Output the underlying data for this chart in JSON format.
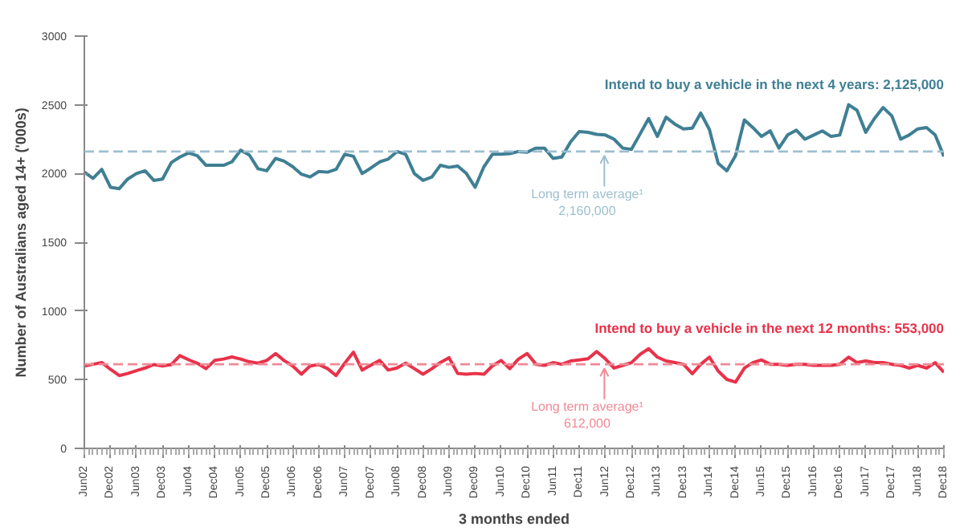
{
  "chart_data": {
    "type": "line",
    "xlabel": "3 months ended",
    "ylabel": "Number of Australians aged 14+ ('000s)",
    "x": [
      "2002-06",
      "2002-08",
      "2002-10",
      "2002-12",
      "2003-02",
      "2003-04",
      "2003-06",
      "2003-08",
      "2003-10",
      "2003-12",
      "2004-02",
      "2004-04",
      "2004-06",
      "2004-08",
      "2004-10",
      "2004-12",
      "2005-02",
      "2005-04",
      "2005-06",
      "2005-08",
      "2005-10",
      "2005-12",
      "2006-02",
      "2006-04",
      "2006-06",
      "2006-08",
      "2006-10",
      "2006-12",
      "2007-02",
      "2007-04",
      "2007-06",
      "2007-08",
      "2007-10",
      "2007-12",
      "2008-02",
      "2008-04",
      "2008-06",
      "2008-08",
      "2008-10",
      "2008-12",
      "2009-02",
      "2009-04",
      "2009-06",
      "2009-08",
      "2009-10",
      "2009-12",
      "2010-02",
      "2010-04",
      "2010-06",
      "2010-08",
      "2010-10",
      "2010-12",
      "2011-02",
      "2011-04",
      "2011-06",
      "2011-08",
      "2011-10",
      "2011-12",
      "2012-02",
      "2012-04",
      "2012-06",
      "2012-08",
      "2012-10",
      "2012-12",
      "2013-02",
      "2013-04",
      "2013-06",
      "2013-08",
      "2013-10",
      "2013-12",
      "2014-02",
      "2014-04",
      "2014-06",
      "2014-08",
      "2014-10",
      "2014-12",
      "2015-02",
      "2015-04",
      "2015-06",
      "2015-08",
      "2015-10",
      "2015-12",
      "2016-02",
      "2016-04",
      "2016-06",
      "2016-08",
      "2016-10",
      "2016-12",
      "2017-02",
      "2017-04",
      "2017-06",
      "2017-08",
      "2017-10",
      "2017-12",
      "2018-02",
      "2018-04",
      "2018-06",
      "2018-08",
      "2018-10",
      "2018-12"
    ],
    "series": [
      {
        "name": "Intend to buy a vehicle in the next 4 years: 2,125,000",
        "color": "#3f7f94",
        "values": [
          2010,
          1965,
          2030,
          1900,
          1890,
          1960,
          2000,
          2020,
          1950,
          1960,
          2080,
          2120,
          2150,
          2130,
          2060,
          2060,
          2060,
          2085,
          2170,
          2135,
          2035,
          2020,
          2110,
          2090,
          2050,
          1995,
          1975,
          2015,
          2010,
          2030,
          2140,
          2125,
          2000,
          2040,
          2085,
          2105,
          2160,
          2140,
          2000,
          1950,
          1975,
          2060,
          2045,
          2055,
          2000,
          1900,
          2050,
          2140,
          2140,
          2145,
          2160,
          2155,
          2185,
          2185,
          2110,
          2120,
          2230,
          2305,
          2300,
          2285,
          2280,
          2250,
          2185,
          2175,
          2290,
          2400,
          2270,
          2410,
          2360,
          2325,
          2330,
          2440,
          2320,
          2075,
          2020,
          2130,
          2390,
          2335,
          2270,
          2310,
          2185,
          2280,
          2315,
          2250,
          2280,
          2310,
          2270,
          2280,
          2500,
          2460,
          2300,
          2400,
          2480,
          2420,
          2250,
          2280,
          2325,
          2335,
          2280,
          2125
        ]
      },
      {
        "name": "Intend to buy a vehicle in the next 12 months: 553,000",
        "color": "#e8324a",
        "values": [
          600,
          612,
          625,
          575,
          530,
          545,
          565,
          585,
          610,
          600,
          610,
          675,
          645,
          620,
          580,
          640,
          650,
          665,
          650,
          630,
          620,
          640,
          690,
          640,
          600,
          540,
          600,
          610,
          580,
          530,
          620,
          700,
          570,
          605,
          640,
          570,
          585,
          620,
          580,
          540,
          580,
          625,
          660,
          545,
          540,
          545,
          540,
          600,
          640,
          580,
          650,
          690,
          612,
          604,
          624,
          612,
          636,
          644,
          652,
          705,
          652,
          584,
          604,
          624,
          685,
          725,
          664,
          636,
          624,
          612,
          543,
          612,
          664,
          563,
          502,
          482,
          584,
          624,
          644,
          612,
          612,
          604,
          612,
          612,
          604,
          604,
          604,
          612,
          664,
          624,
          636,
          624,
          624,
          612,
          604,
          584,
          604,
          584,
          624,
          553
        ]
      }
    ],
    "ylim": [
      0,
      3000
    ],
    "yticks": [
      0,
      500,
      1000,
      1500,
      2000,
      2500,
      3000
    ],
    "xlim": [
      "2002-06",
      "2018-12"
    ],
    "xticks": [
      {
        "value": "2002-06",
        "label": "Jun02"
      },
      {
        "value": "2002-12",
        "label": "Dec02"
      },
      {
        "value": "2003-06",
        "label": "Jun03"
      },
      {
        "value": "2003-12",
        "label": "Dec03"
      },
      {
        "value": "2004-06",
        "label": "Jun04"
      },
      {
        "value": "2004-12",
        "label": "Dec04"
      },
      {
        "value": "2005-06",
        "label": "Jun05"
      },
      {
        "value": "2005-12",
        "label": "Dec05"
      },
      {
        "value": "2006-06",
        "label": "Jun06"
      },
      {
        "value": "2006-12",
        "label": "Dec06"
      },
      {
        "value": "2007-06",
        "label": "Jun07"
      },
      {
        "value": "2007-12",
        "label": "Dec07"
      },
      {
        "value": "2008-06",
        "label": "Jun08"
      },
      {
        "value": "2008-12",
        "label": "Dec08"
      },
      {
        "value": "2009-06",
        "label": "Jun09"
      },
      {
        "value": "2009-12",
        "label": "Dec09"
      },
      {
        "value": "2010-06",
        "label": "Jun10"
      },
      {
        "value": "2010-12",
        "label": "Dec10"
      },
      {
        "value": "2011-06",
        "label": "Jun11"
      },
      {
        "value": "2011-12",
        "label": "Dec11"
      },
      {
        "value": "2012-06",
        "label": "Jun12"
      },
      {
        "value": "2012-12",
        "label": "Dec12"
      },
      {
        "value": "2013-06",
        "label": "Jun13"
      },
      {
        "value": "2013-12",
        "label": "Dec13"
      },
      {
        "value": "2014-06",
        "label": "Jun14"
      },
      {
        "value": "2014-12",
        "label": "Dec14"
      },
      {
        "value": "2015-06",
        "label": "Jun15"
      },
      {
        "value": "2015-12",
        "label": "Dec15"
      },
      {
        "value": "2016-06",
        "label": "Jun16"
      },
      {
        "value": "2016-12",
        "label": "Dec16"
      },
      {
        "value": "2017-06",
        "label": "Jun17"
      },
      {
        "value": "2017-12",
        "label": "Dec17"
      },
      {
        "value": "2018-06",
        "label": "Jun18"
      },
      {
        "value": "2018-12",
        "label": "Dec18"
      }
    ],
    "ref_lines": [
      {
        "axis": "y",
        "value": 2160,
        "label": "Long term average¹\n2,160,000",
        "color": "#9dbfcf",
        "line_style": "dashed"
      },
      {
        "axis": "y",
        "value": 612,
        "label": "Long term average¹\n612,000",
        "color": "#ef8a96",
        "line_style": "dashed"
      }
    ]
  }
}
